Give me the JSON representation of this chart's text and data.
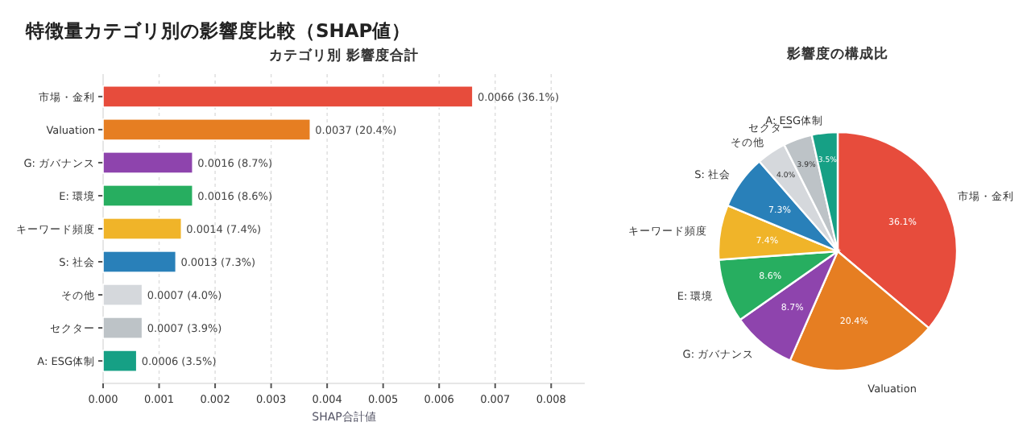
{
  "chart_data": [
    {
      "type": "bar",
      "orientation": "horizontal",
      "title": "特徴量カテゴリ別の影響度比較（SHAP値）",
      "subtitle": "カテゴリ別 影響度合計",
      "xlabel": "SHAP合計値",
      "categories": [
        "市場・金利",
        "Valuation",
        "G: ガバナンス",
        "E: 環境",
        "キーワード頻度",
        "S: 社会",
        "その他",
        "セクター",
        "A: ESG体制"
      ],
      "values": [
        0.0066,
        0.0037,
        0.0016,
        0.0016,
        0.0014,
        0.0013,
        0.0007,
        0.0007,
        0.0006
      ],
      "colors": [
        "#e74c3c",
        "#e67e22",
        "#8e44ad",
        "#27ae60",
        "#f0b429",
        "#2980b9",
        "#d5d8dc",
        "#bdc3c7",
        "#16a085"
      ],
      "value_labels": [
        "0.0066 (36.1%)",
        "0.0037 (20.4%)",
        "0.0016 (8.7%)",
        "0.0016 (8.6%)",
        "0.0014 (7.4%)",
        "0.0013 (7.3%)",
        "0.0007 (4.0%)",
        "0.0007 (3.9%)",
        "0.0006 (3.5%)"
      ],
      "xlim": [
        0,
        0.0086
      ],
      "xticks": [
        {
          "value": 0,
          "label": "0.000"
        },
        {
          "value": 0.001,
          "label": "0.001"
        },
        {
          "value": 0.002,
          "label": "0.002"
        },
        {
          "value": 0.003,
          "label": "0.003"
        },
        {
          "value": 0.004,
          "label": "0.004"
        },
        {
          "value": 0.005,
          "label": "0.005"
        },
        {
          "value": 0.006,
          "label": "0.006"
        },
        {
          "value": 0.007,
          "label": "0.007"
        },
        {
          "value": 0.008,
          "label": "0.008"
        }
      ],
      "grid": "x"
    },
    {
      "type": "pie",
      "title": "影響度の構成比",
      "categories": [
        "市場・金利",
        "Valuation",
        "G: ガバナンス",
        "E: 環境",
        "キーワード頻度",
        "S: 社会",
        "その他",
        "セクター",
        "A: ESG体制"
      ],
      "values": [
        36.1,
        20.4,
        8.7,
        8.6,
        7.4,
        7.3,
        4.0,
        3.9,
        3.5
      ],
      "colors": [
        "#e74c3c",
        "#e67e22",
        "#8e44ad",
        "#27ae60",
        "#f0b429",
        "#2980b9",
        "#d5d8dc",
        "#bdc3c7",
        "#16a085"
      ],
      "value_labels": [
        "36.1%",
        "20.4%",
        "8.7%",
        "8.6%",
        "7.4%",
        "7.3%",
        "4.0%",
        "3.9%",
        "3.5%"
      ]
    }
  ]
}
